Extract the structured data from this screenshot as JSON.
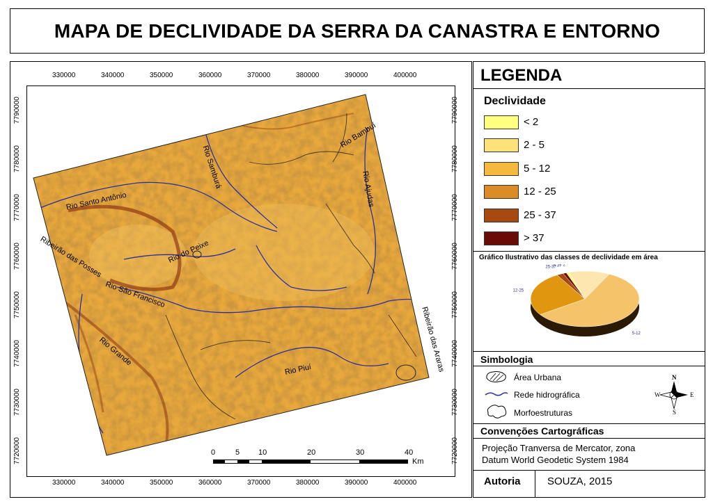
{
  "title": "MAPA DE DECLIVIDADE DA SERRA DA CANASTRA E ENTORNO",
  "map": {
    "x_ticks": [
      "330000",
      "340000",
      "350000",
      "360000",
      "370000",
      "380000",
      "390000",
      "400000"
    ],
    "y_ticks": [
      "7790000",
      "7780000",
      "7770000",
      "7760000",
      "7750000",
      "7740000",
      "7730000",
      "7720000"
    ],
    "river_labels": {
      "sambura": "Rio Samburá",
      "bambui": "Rio Bambuí",
      "ajudas": "Rio Ajudas",
      "santo_antonio": "Rio Santo Antônio",
      "peixe": "Rio do Peixe",
      "posses": "Ribeirão das Posses",
      "sao_francisco": "Rio São Francisco",
      "grande": "Rio Grande",
      "piui": "Rio Piuí",
      "araras": "Ribeirão das Araras"
    },
    "scalebar": {
      "labels": [
        "0",
        "5",
        "10",
        "20",
        "30",
        "40"
      ],
      "unit": "Km"
    }
  },
  "legend": {
    "heading": "LEGENDA",
    "declividade_title": "Declividade",
    "classes": [
      {
        "label": "< 2",
        "color": "#ffff80"
      },
      {
        "label": "2 - 5",
        "color": "#fde27a"
      },
      {
        "label": "5 - 12",
        "color": "#f5b93d"
      },
      {
        "label": "12 - 25",
        "color": "#dc8c25"
      },
      {
        "label": "25 - 37",
        "color": "#a64a12"
      },
      {
        "label": "> 37",
        "color": "#6b0b05"
      }
    ]
  },
  "chart_data": {
    "type": "pie",
    "title": "Gráfico Ilustrativo das classes de declividade em área",
    "slices": [
      {
        "label": "< 2",
        "value": 1,
        "color": "#ffff80"
      },
      {
        "label": "2-5",
        "value": 12,
        "color": "#fde6b0"
      },
      {
        "label": "5-12",
        "value": 58,
        "color": "#f5c46a"
      },
      {
        "label": "12-25",
        "value": 26,
        "color": "#e0960e"
      },
      {
        "label": "25-37",
        "value": 2,
        "color": "#a64a12"
      },
      {
        "label": "> 37",
        "value": 1,
        "color": "#6b0b05"
      }
    ]
  },
  "symbology": {
    "title": "Simbologia",
    "items": [
      "Área Urbana",
      "Rede hidrográfica",
      "Morfoestruturas"
    ],
    "compass": {
      "n": "N",
      "s": "S",
      "e": "E",
      "w": "W"
    }
  },
  "conventions": {
    "title": "Convenções Cartográficas",
    "line1": "Projeção Tranversa de Mercator, zona",
    "line2": "Datum World Geodetic System 1984"
  },
  "authorship": {
    "label": "Autoria",
    "value": "SOUZA, 2015"
  }
}
